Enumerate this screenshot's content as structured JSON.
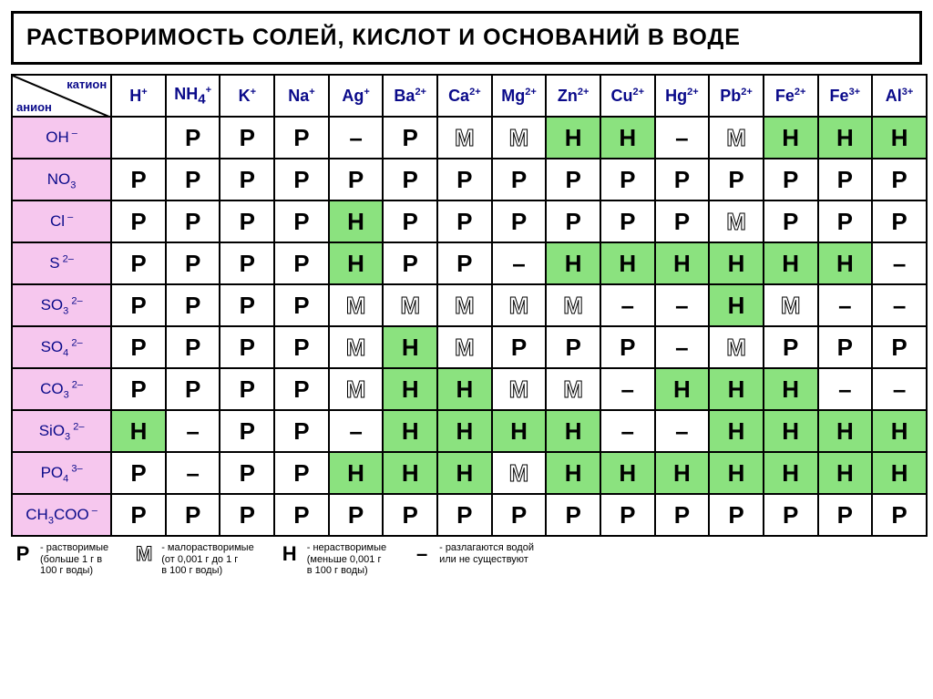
{
  "title": "РАСТВОРИМОСТЬ СОЛЕЙ, КИСЛОТ  И ОСНОВАНИЙ В ВОДЕ",
  "corner_labels": {
    "top": "катион",
    "bottom": "анион"
  },
  "cations": [
    {
      "html": "H<sup>+</sup>"
    },
    {
      "html": "NH<sub>4</sub><sup>+</sup>"
    },
    {
      "html": "K<sup>+</sup>"
    },
    {
      "html": "Na<sup>+</sup>"
    },
    {
      "html": "Ag<sup>+</sup>"
    },
    {
      "html": "Ba<sup>2+</sup>"
    },
    {
      "html": "Ca<sup>2+</sup>"
    },
    {
      "html": "Mg<sup>2+</sup>"
    },
    {
      "html": "Zn<sup>2+</sup>"
    },
    {
      "html": "Cu<sup>2+</sup>"
    },
    {
      "html": "Hg<sup>2+</sup>"
    },
    {
      "html": "Pb<sup>2+</sup>"
    },
    {
      "html": "Fe<sup>2+</sup>"
    },
    {
      "html": "Fe<sup>3+</sup>"
    },
    {
      "html": "Al<sup>3+</sup>"
    }
  ],
  "anions": [
    {
      "html": "OH<sup>&nbsp;&#8211;</sup>",
      "pink": true
    },
    {
      "html": "NO<sub>3</sub>",
      "pink": true
    },
    {
      "html": "Cl<sup>&nbsp;&#8211;</sup>",
      "pink": true
    },
    {
      "html": "S<sup>&nbsp;2&#8211;</sup>",
      "pink": true
    },
    {
      "html": "SO<sub>3</sub><sup>&nbsp;2&#8211;</sup>",
      "pink": true
    },
    {
      "html": "SO<sub>4</sub><sup>&nbsp;2&#8211;</sup>",
      "pink": true
    },
    {
      "html": "CO<sub>3</sub><sup>&nbsp;2&#8211;</sup>",
      "pink": true
    },
    {
      "html": "SiO<sub>3</sub><sup>&nbsp;2&#8211;</sup>",
      "pink": true
    },
    {
      "html": "PO<sub>4</sub><sup>&nbsp;3&#8211;</sup>",
      "pink": true
    },
    {
      "html": "CH<sub>3</sub>COO<sup>&nbsp;&#8211;</sup>",
      "pink": true
    }
  ],
  "grid": [
    [
      "",
      "P",
      "P",
      "P",
      "D",
      "P",
      "M",
      "M",
      "H",
      "H",
      "D",
      "M",
      "H",
      "H",
      "H"
    ],
    [
      "P",
      "P",
      "P",
      "P",
      "P",
      "P",
      "P",
      "P",
      "P",
      "P",
      "P",
      "P",
      "P",
      "P",
      "P"
    ],
    [
      "P",
      "P",
      "P",
      "P",
      "H",
      "P",
      "P",
      "P",
      "P",
      "P",
      "P",
      "M",
      "P",
      "P",
      "P"
    ],
    [
      "P",
      "P",
      "P",
      "P",
      "H",
      "P",
      "P",
      "D",
      "H",
      "H",
      "H",
      "H",
      "H",
      "H",
      "D"
    ],
    [
      "P",
      "P",
      "P",
      "P",
      "M",
      "M",
      "M",
      "M",
      "M",
      "D",
      "D",
      "H",
      "M",
      "D",
      "D"
    ],
    [
      "P",
      "P",
      "P",
      "P",
      "M",
      "H",
      "M",
      "P",
      "P",
      "P",
      "D",
      "M",
      "P",
      "P",
      "P"
    ],
    [
      "P",
      "P",
      "P",
      "P",
      "M",
      "H",
      "H",
      "M",
      "M",
      "D",
      "H",
      "H",
      "H",
      "D",
      "D"
    ],
    [
      "H",
      "D",
      "P",
      "P",
      "D",
      "H",
      "H",
      "H",
      "H",
      "D",
      "D",
      "H",
      "H",
      "H",
      "H"
    ],
    [
      "P",
      "D",
      "P",
      "P",
      "H",
      "H",
      "H",
      "M",
      "H",
      "H",
      "H",
      "H",
      "H",
      "H",
      "H"
    ],
    [
      "P",
      "P",
      "P",
      "P",
      "P",
      "P",
      "P",
      "P",
      "P",
      "P",
      "P",
      "P",
      "P",
      "P",
      "P"
    ]
  ],
  "symbol_display": {
    "P": "Р",
    "M": "M",
    "H": "Н",
    "D": "&#8211;",
    "": ""
  },
  "legend": [
    {
      "sym": "Р",
      "cls": "",
      "desc": "- растворимые\n(больше 1 г в\n100 г воды)"
    },
    {
      "sym": "M",
      "cls": "m",
      "desc": "- малорастворимые\n(от 0,001 г до 1 г\nв 100 г воды)"
    },
    {
      "sym": "Н",
      "cls": "",
      "desc": "- нерастворимые\n(меньше 0,001 г\nв 100 г воды)"
    },
    {
      "sym": "–",
      "cls": "",
      "desc": "- разлагаются водой\nили не существуют"
    }
  ],
  "colors": {
    "pink": "#f6c7ee",
    "green": "#8be27f",
    "header_text": "#0a0a8a",
    "border": "#000000",
    "background": "#ffffff"
  }
}
